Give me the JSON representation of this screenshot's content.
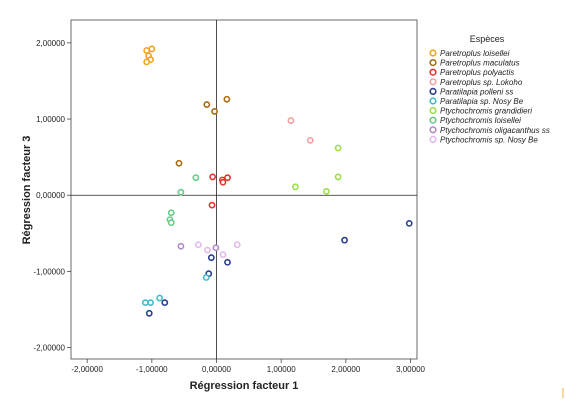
{
  "chart_data": {
    "type": "scatter",
    "xlabel": "Régression facteur 1",
    "ylabel": "Régression facteur  3",
    "xlim": [
      -2.25,
      3.1
    ],
    "ylim": [
      -2.15,
      2.3
    ],
    "x_ticks": [
      -2,
      -1,
      0,
      1,
      2,
      3
    ],
    "x_tick_labels": [
      "-2,00000",
      "-1,00000",
      "0,00000",
      "1,00000",
      "2,00000",
      "3,00000"
    ],
    "y_ticks": [
      -2,
      -1,
      0,
      1,
      2
    ],
    "y_tick_labels": [
      "-2,00000",
      "-1,00000",
      "0,00000",
      "1,00000",
      "2,00000"
    ],
    "grid": false,
    "reference_lines": {
      "x": 0,
      "y": 0
    },
    "legend_title": "Espèces",
    "legend_position": "right",
    "series": [
      {
        "name": "Paretroplus loisellei",
        "color": "#f4a020",
        "points": [
          [
            -1.08,
            1.9
          ],
          [
            -1.0,
            1.92
          ],
          [
            -1.05,
            1.83
          ],
          [
            -1.02,
            1.78
          ],
          [
            -1.08,
            1.75
          ]
        ]
      },
      {
        "name": "Paretroplus maculatus",
        "color": "#a86a12",
        "points": [
          [
            -0.15,
            1.19
          ],
          [
            0.16,
            1.26
          ],
          [
            -0.03,
            1.1
          ],
          [
            -0.58,
            0.42
          ]
        ]
      },
      {
        "name": "Paretroplus polyactis",
        "color": "#e8322e",
        "points": [
          [
            -0.06,
            0.24
          ],
          [
            0.09,
            0.2
          ],
          [
            0.17,
            0.23
          ],
          [
            0.1,
            0.17
          ],
          [
            -0.07,
            -0.13
          ]
        ]
      },
      {
        "name": "Paretroplus sp. Lokoho",
        "color": "#f5a0a0",
        "points": [
          [
            1.15,
            0.98
          ],
          [
            1.45,
            0.72
          ]
        ]
      },
      {
        "name": "Paratilapia polleni ss",
        "color": "#2a3f8c",
        "points": [
          [
            -0.08,
            -0.82
          ],
          [
            0.17,
            -0.88
          ],
          [
            -0.12,
            -1.03
          ],
          [
            -1.04,
            -1.55
          ],
          [
            -0.8,
            -1.41
          ],
          [
            1.98,
            -0.59
          ],
          [
            2.98,
            -0.37
          ]
        ]
      },
      {
        "name": "Paratilapia sp. Nosy Be",
        "color": "#3cc0c8",
        "points": [
          [
            -0.16,
            -1.08
          ],
          [
            -1.1,
            -1.41
          ],
          [
            -1.02,
            -1.41
          ],
          [
            -0.88,
            -1.35
          ]
        ]
      },
      {
        "name": "Ptychochromis grandidieri",
        "color": "#9ade4a",
        "points": [
          [
            1.88,
            0.62
          ],
          [
            1.22,
            0.11
          ],
          [
            1.7,
            0.05
          ],
          [
            1.88,
            0.24
          ]
        ]
      },
      {
        "name": "Ptychochromis loisellei",
        "color": "#66cc88",
        "points": [
          [
            -0.32,
            0.23
          ],
          [
            -0.55,
            0.04
          ],
          [
            -0.7,
            -0.23
          ],
          [
            -0.72,
            -0.32
          ],
          [
            -0.7,
            -0.36
          ]
        ]
      },
      {
        "name": "Ptychochromis oligacanthus ss",
        "color": "#b08ac8",
        "points": [
          [
            -0.55,
            -0.67
          ],
          [
            -0.01,
            -0.69
          ]
        ]
      },
      {
        "name": "Ptychochromis sp. Nosy Be",
        "color": "#e4b8ec",
        "points": [
          [
            -0.28,
            -0.65
          ],
          [
            -0.14,
            -0.72
          ],
          [
            0.1,
            -0.78
          ],
          [
            0.32,
            -0.65
          ]
        ]
      }
    ]
  }
}
